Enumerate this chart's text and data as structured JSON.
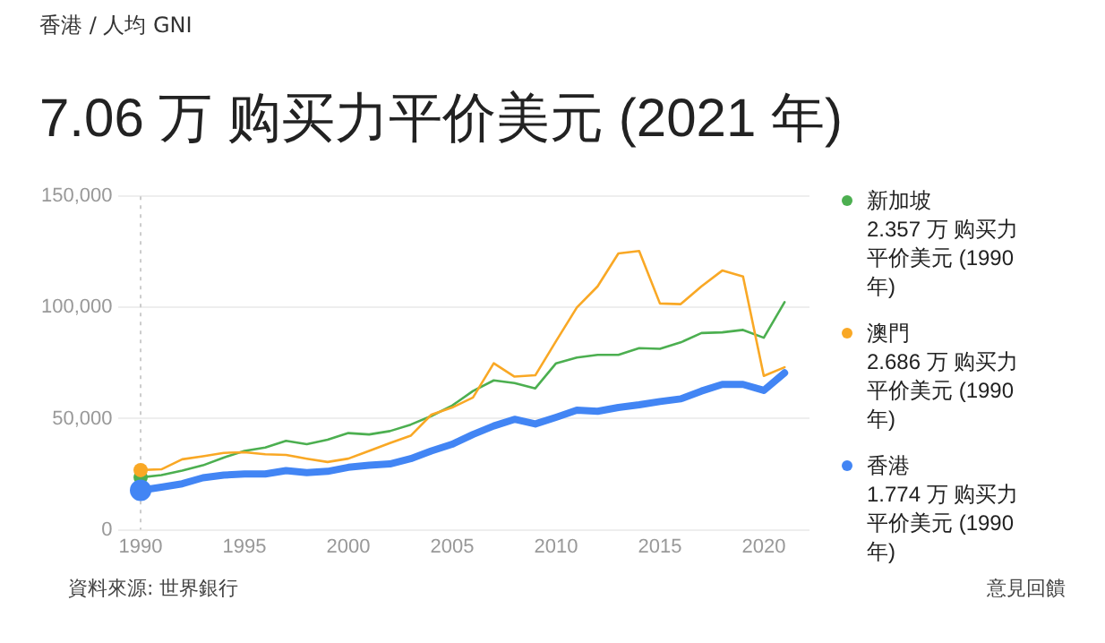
{
  "chart_data": {
    "type": "line",
    "title": "7.06 万 购买力平价美元 (2021 年)",
    "subtitle": "香港 / 人均 GNI",
    "x": [
      1990,
      1991,
      1992,
      1993,
      1994,
      1995,
      1996,
      1997,
      1998,
      1999,
      2000,
      2001,
      2002,
      2003,
      2004,
      2005,
      2006,
      2007,
      2008,
      2009,
      2010,
      2011,
      2012,
      2013,
      2014,
      2015,
      2016,
      2017,
      2018,
      2019,
      2020,
      2021
    ],
    "series": [
      {
        "name": "新加坡",
        "color": "#4caf50",
        "values": [
          23570,
          24600,
          26600,
          29000,
          32500,
          35500,
          37000,
          40000,
          38500,
          40500,
          43500,
          42900,
          44400,
          47300,
          51200,
          55900,
          62400,
          67200,
          66000,
          63600,
          74900,
          77500,
          78700,
          78700,
          81700,
          81400,
          84300,
          88500,
          88800,
          89900,
          86400,
          102400
        ]
      },
      {
        "name": "澳門",
        "color": "#f9a825",
        "values": [
          26860,
          27200,
          31700,
          33100,
          34600,
          34900,
          34000,
          33700,
          32000,
          30500,
          32000,
          35500,
          39000,
          42300,
          51800,
          55000,
          59500,
          74900,
          68900,
          69500,
          84900,
          100000,
          109500,
          124300,
          125400,
          101800,
          101500,
          109500,
          116600,
          113900,
          69200,
          73100
        ]
      },
      {
        "name": "香港",
        "color": "#4285f4",
        "values": [
          17740,
          19200,
          20700,
          23400,
          24600,
          25100,
          25100,
          26600,
          25700,
          26300,
          28100,
          29000,
          29600,
          32000,
          35500,
          38500,
          42900,
          46700,
          49700,
          47600,
          50600,
          53800,
          53300,
          55000,
          56200,
          57700,
          58900,
          62400,
          65400,
          65400,
          62700,
          70600
        ]
      }
    ],
    "xlim": [
      1988.9,
      2022.2
    ],
    "xticks": [
      1990,
      1995,
      2000,
      2005,
      2010,
      2015,
      2020
    ],
    "ylim": [
      0,
      150000
    ],
    "yticks": [
      0,
      {
        "value": 50000,
        "label": "50,000"
      },
      {
        "value": 100000,
        "label": "100,000"
      },
      {
        "value": 150000,
        "label": "150,000"
      }
    ],
    "grid": "y",
    "legend": "right",
    "ref_lines": [
      {
        "axis": "x",
        "value": 1990,
        "color": "#cccccc",
        "line_style": "dotted"
      }
    ],
    "annotations": [
      "2.357 万 购买力平价美元 (1990 年)",
      "2.686 万 购买力平价美元 (1990 年)",
      "1.774 万 购买力平价美元 (1990 年)",
      "資料來源:  世界銀行",
      "意見回饋"
    ]
  }
}
